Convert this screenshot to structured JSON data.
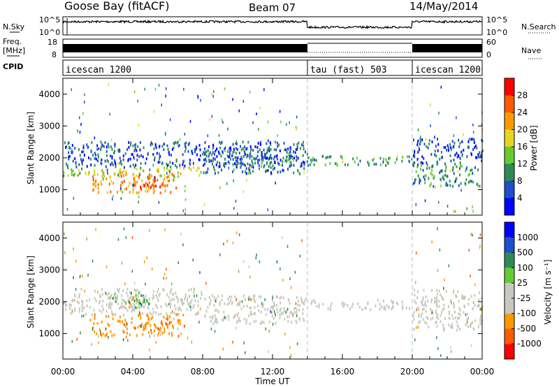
{
  "header": {
    "station": "Goose Bay (fitACF)",
    "beam": "Beam 07",
    "date": "14/May/2014"
  },
  "strips": {
    "nsky_label": "N.Sky",
    "nsky_ticks": [
      "10^5",
      "10^0"
    ],
    "nsearch_label": "N.Search",
    "nsearch_ticks": [
      "10^5",
      "10^0"
    ],
    "freq_label": "Freq.",
    "freq_unit": "[MHz]",
    "freq_ticks": [
      "18",
      "8"
    ],
    "nave_label": "Nave",
    "nave_ticks": [
      "60",
      "0"
    ],
    "cpid_label": "CPID",
    "cpid_segments": [
      {
        "name": "icescan 1200",
        "start_hour": 0,
        "end_hour": 14
      },
      {
        "name": "tau (fast) 503",
        "start_hour": 14,
        "end_hour": 20
      },
      {
        "name": "icescan 1200",
        "start_hour": 20,
        "end_hour": 24
      }
    ]
  },
  "x_axis": {
    "label": "Time UT",
    "ticks": [
      "00:00",
      "04:00",
      "08:00",
      "12:00",
      "16:00",
      "20:00",
      "00:00"
    ],
    "range_hours": [
      0,
      24
    ]
  },
  "chart_data": [
    {
      "type": "heatmap",
      "name": "power",
      "ylabel": "Slant Range [km]",
      "y_ticks": [
        "1000",
        "2000",
        "3000",
        "4000"
      ],
      "ylim": [
        200,
        4500
      ],
      "xlim_hours": [
        0,
        24
      ],
      "colorbar": {
        "title": "Power [dB]",
        "ticks": [
          "4",
          "8",
          "12",
          "16",
          "20",
          "24",
          "28"
        ],
        "colors": [
          "#0000ff",
          "#1d4fc9",
          "#2e8b57",
          "#66cc33",
          "#e6d620",
          "#ff9900",
          "#ff5a00",
          "#ff0000"
        ]
      },
      "regions": [
        {
          "t0": 0.0,
          "t1": 8.0,
          "r0": 1400,
          "r1": 1700,
          "value": 16
        },
        {
          "t0": 1.5,
          "t1": 6.5,
          "r0": 900,
          "r1": 1500,
          "value": 22
        },
        {
          "t0": 4.0,
          "t1": 6.0,
          "r0": 1000,
          "r1": 1300,
          "value": 26
        },
        {
          "t0": 0.0,
          "t1": 14.0,
          "r0": 1700,
          "r1": 2500,
          "value": 6
        },
        {
          "t0": 8.0,
          "t1": 14.0,
          "r0": 1500,
          "r1": 2300,
          "value": 8
        },
        {
          "t0": 14.0,
          "t1": 20.0,
          "r0": 1750,
          "r1": 2050,
          "value": 12
        },
        {
          "t0": 20.0,
          "t1": 24.0,
          "r0": 1100,
          "r1": 1800,
          "value": 10
        },
        {
          "t0": 20.0,
          "t1": 24.0,
          "r0": 1800,
          "r1": 2600,
          "value": 5
        }
      ]
    },
    {
      "type": "heatmap",
      "name": "velocity",
      "ylabel": "Slant Range [km]",
      "y_ticks": [
        "1000",
        "2000",
        "3000",
        "4000"
      ],
      "ylim": [
        200,
        4500
      ],
      "xlim_hours": [
        0,
        24
      ],
      "colorbar": {
        "title": "Velocity [m s⁻¹]",
        "ticks": [
          "-1000",
          "-500",
          "-100",
          "-25",
          "25",
          "100",
          "500",
          "1000"
        ],
        "colors": [
          "#ff0000",
          "#ff5a00",
          "#ff9900",
          "#c8c8c0",
          "#c8c8c0",
          "#66cc33",
          "#2e8b57",
          "#1d4fc9",
          "#0000ff"
        ]
      },
      "regions": [
        {
          "t0": 1.5,
          "t1": 7.0,
          "r0": 900,
          "r1": 1600,
          "value": -300
        },
        {
          "t0": 0.0,
          "t1": 8.0,
          "r0": 1600,
          "r1": 2400,
          "value": 0
        },
        {
          "t0": 8.0,
          "t1": 14.0,
          "r0": 1300,
          "r1": 2200,
          "value": 0
        },
        {
          "t0": 14.0,
          "t1": 20.0,
          "r0": 1750,
          "r1": 2050,
          "value": 0
        },
        {
          "t0": 20.0,
          "t1": 24.0,
          "r0": 1100,
          "r1": 2400,
          "value": 0
        },
        {
          "t0": 2.5,
          "t1": 5.0,
          "r0": 1800,
          "r1": 2300,
          "value": 60
        }
      ]
    }
  ]
}
